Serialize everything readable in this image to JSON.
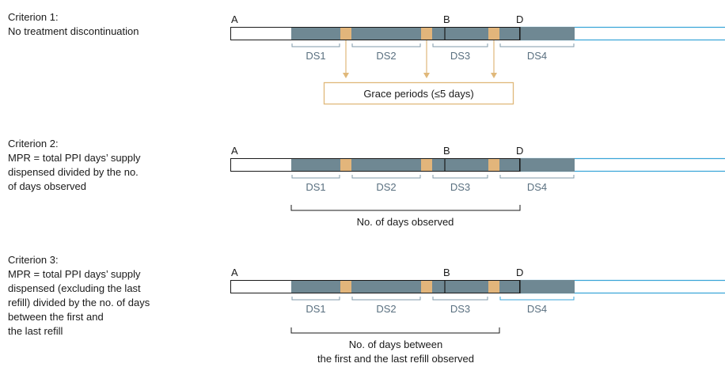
{
  "criteria": [
    {
      "lines": [
        "Criterion 1:",
        "No treatment discontinuation"
      ]
    },
    {
      "lines": [
        "Criterion 2:",
        "MPR = total PPI days’ supply",
        "dispensed divided by the no.",
        "of days observed"
      ]
    },
    {
      "lines": [
        "Criterion 3:",
        "MPR = total PPI days’ supply",
        "dispensed (excluding the last",
        "refill) divided by the no. of days",
        "between the first and",
        "the last refill"
      ]
    }
  ],
  "markers": {
    "a": "A",
    "b": "B",
    "d": "D"
  },
  "ds_labels": [
    "DS1",
    "DS2",
    "DS3",
    "DS4"
  ],
  "grace_label": "Grace periods (≤5 days)",
  "observed_label": "No. of days observed",
  "between_label_lines": [
    "No. of days between",
    "the first and the last refill observed"
  ],
  "colors": {
    "supply": "#6f8893",
    "grace": "#e2b57b",
    "grace_line": "#e0b87a",
    "future_outline": "#3aa5d8",
    "ds_highlight": "#3aa5d8",
    "ds_label": "#5a7080",
    "bracket": "#7f9aa8",
    "outline": "#1a1a1a"
  }
}
